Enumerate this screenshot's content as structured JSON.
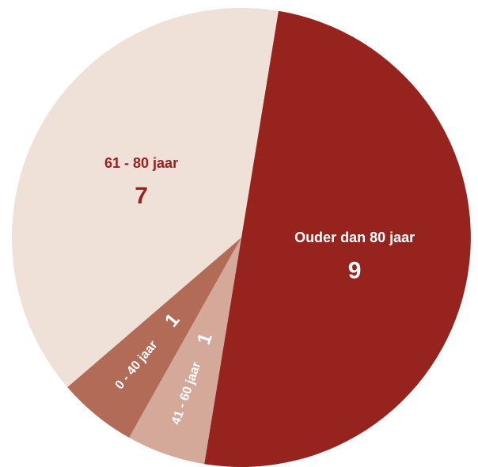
{
  "chart_data": {
    "type": "pie",
    "categories": [
      "Ouder dan 80 jaar",
      "41 - 60 jaar",
      "0 - 40 jaar",
      "61 - 80 jaar"
    ],
    "values": [
      9,
      1,
      1,
      7
    ],
    "colors": [
      "#97231f",
      "#d4a99a",
      "#b26b57",
      "#efe0d8"
    ],
    "label_colors": [
      "#ffffff",
      "#ffffff",
      "#ffffff",
      "#97231f"
    ]
  }
}
